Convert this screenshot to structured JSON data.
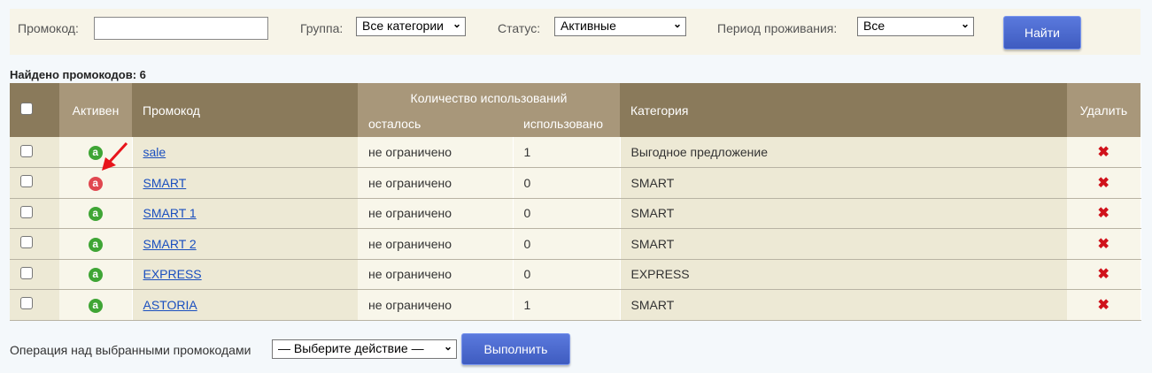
{
  "filters": {
    "promo_label": "Промокод:",
    "promo_value": "",
    "promo_placeholder": "",
    "group_label": "Группа:",
    "group_value": "Все категории",
    "status_label": "Статус:",
    "status_value": "Активные",
    "period_label": "Период проживания:",
    "period_value": "Все",
    "search_button": "Найти"
  },
  "found_text": "Найдено промокодов: 6",
  "table": {
    "headers": {
      "active": "Активен",
      "promo": "Промокод",
      "usage_group": "Количество использований",
      "remaining": "осталось",
      "used": "использовано",
      "category": "Категория",
      "delete": "Удалить"
    },
    "rows": [
      {
        "active": true,
        "code": "sale",
        "remaining": "не ограничено",
        "used": "1",
        "category": "Выгодное предложение"
      },
      {
        "active": false,
        "code": "SMART",
        "remaining": "не ограничено",
        "used": "0",
        "category": "SMART"
      },
      {
        "active": true,
        "code": "SMART 1",
        "remaining": "не ограничено",
        "used": "0",
        "category": "SMART"
      },
      {
        "active": true,
        "code": "SMART 2",
        "remaining": "не ограничено",
        "used": "0",
        "category": "SMART"
      },
      {
        "active": true,
        "code": "EXPRESS",
        "remaining": "не ограничено",
        "used": "0",
        "category": "EXPRESS"
      },
      {
        "active": true,
        "code": "ASTORIA",
        "remaining": "не ограничено",
        "used": "1",
        "category": "SMART"
      }
    ],
    "active_icon_glyph": "a",
    "delete_icon_glyph": "✖",
    "colors": {
      "active": "#3fa535",
      "inactive": "#e0474f",
      "delete": "#d0121b"
    }
  },
  "bulk": {
    "label": "Операция над выбранными промокодами",
    "select_value": "— Выберите действие —",
    "run_button": "Выполнить"
  }
}
